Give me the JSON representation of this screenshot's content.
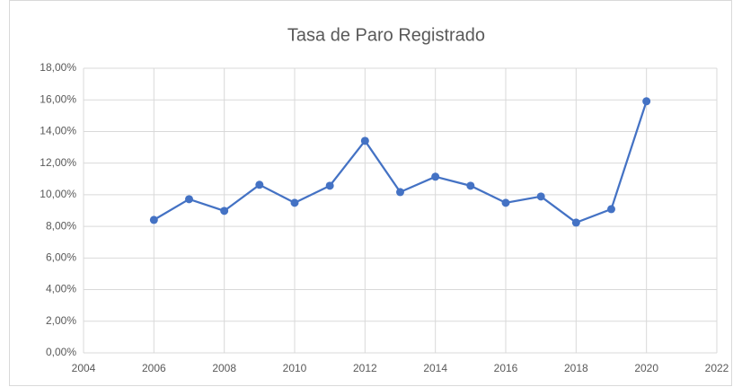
{
  "chart_data": {
    "type": "line",
    "title": "Tasa de Paro Registrado",
    "x": [
      2006,
      2007,
      2008,
      2009,
      2010,
      2011,
      2012,
      2013,
      2014,
      2015,
      2016,
      2017,
      2018,
      2019,
      2020
    ],
    "series": [
      {
        "color": "#4472c4",
        "values": [
          8.41,
          9.72,
          8.98,
          10.63,
          9.49,
          10.57,
          13.41,
          10.17,
          11.14,
          10.57,
          9.49,
          9.89,
          8.24,
          9.09,
          15.91
        ]
      }
    ],
    "xlim": [
      2004,
      2022
    ],
    "xticks": [
      2004,
      2006,
      2008,
      2010,
      2012,
      2014,
      2016,
      2018,
      2020,
      2022
    ],
    "ylim": [
      0,
      18
    ],
    "yticks": [
      {
        "value": 0,
        "label": "0,00%"
      },
      {
        "value": 2,
        "label": "2,00%"
      },
      {
        "value": 4,
        "label": "4,00%"
      },
      {
        "value": 6,
        "label": "6,00%"
      },
      {
        "value": 8,
        "label": "8,00%"
      },
      {
        "value": 10,
        "label": "10,00%"
      },
      {
        "value": 12,
        "label": "12,00%"
      },
      {
        "value": 14,
        "label": "14,00%"
      },
      {
        "value": 16,
        "label": "16,00%"
      },
      {
        "value": 18,
        "label": "18,00%"
      }
    ],
    "grid": true
  }
}
